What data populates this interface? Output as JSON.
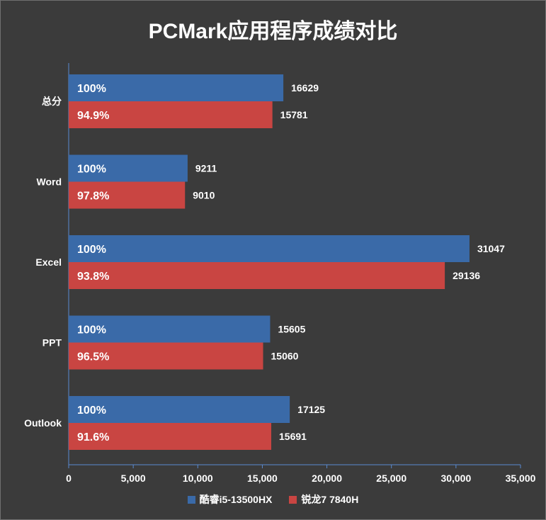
{
  "chart_data": {
    "type": "bar",
    "orientation": "horizontal",
    "title": "PCMark应用程序成绩对比",
    "categories": [
      "总分",
      "Word",
      "Excel",
      "PPT",
      "Outlook"
    ],
    "series": [
      {
        "name": "酷睿i5-13500HX",
        "color": "#3a6aa8",
        "values": [
          16629,
          9211,
          31047,
          15605,
          17125
        ],
        "percent_labels": [
          "100%",
          "100%",
          "100%",
          "100%",
          "100%"
        ]
      },
      {
        "name": "锐龙7 7840H",
        "color": "#c94542",
        "values": [
          15781,
          9010,
          29136,
          15060,
          15691
        ],
        "percent_labels": [
          "94.9%",
          "97.8%",
          "93.8%",
          "96.5%",
          "91.6%"
        ]
      }
    ],
    "xlim": [
      0,
      35000
    ],
    "xticks": [
      0,
      5000,
      10000,
      15000,
      20000,
      25000,
      30000,
      35000
    ],
    "xtick_labels": [
      "0",
      "5,000",
      "10,000",
      "15,000",
      "20,000",
      "25,000",
      "30,000",
      "35,000"
    ],
    "grid": false,
    "legend_position": "bottom"
  }
}
